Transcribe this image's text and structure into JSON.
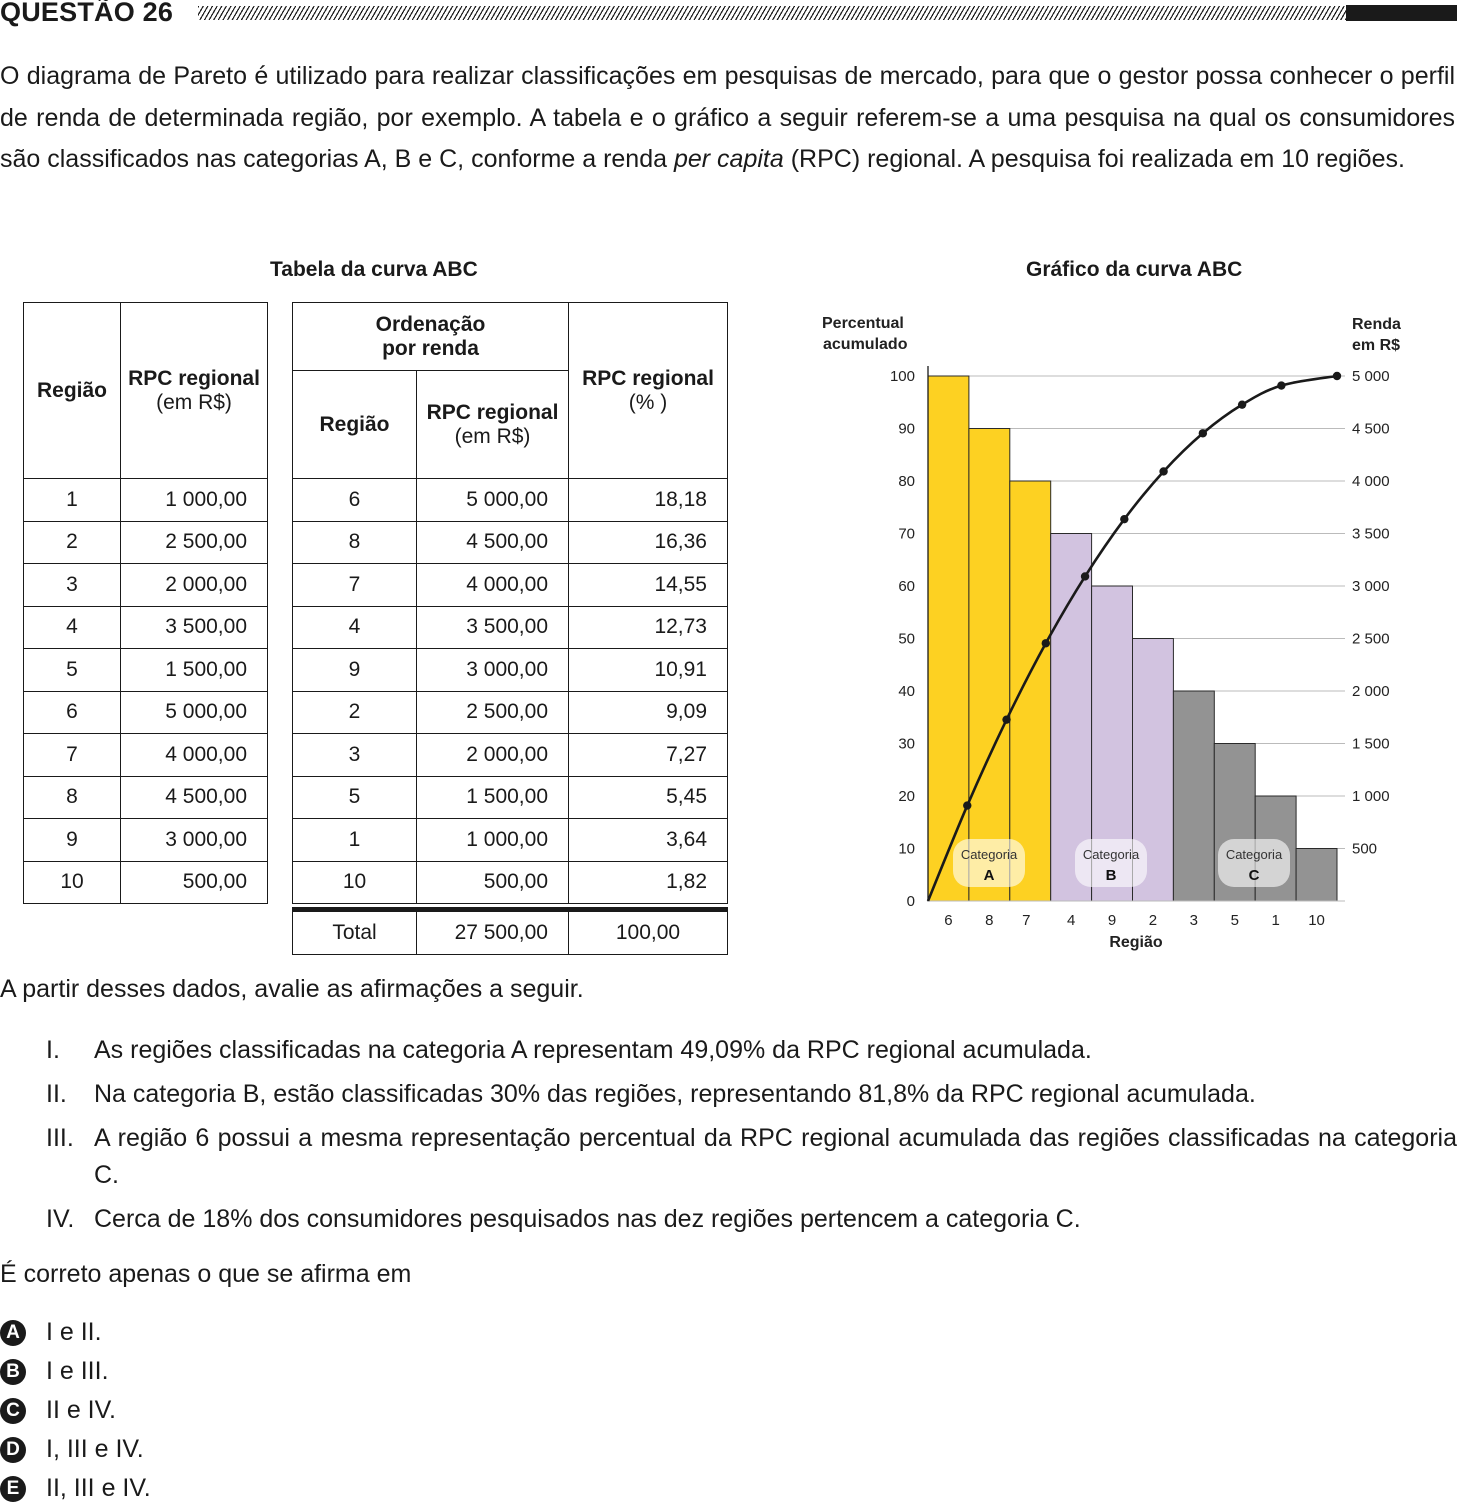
{
  "question": {
    "title": "QUESTÃO 26",
    "intro_pre": "O diagrama de Pareto é utilizado para realizar classificações em pesquisas de mercado, para que o gestor possa conhecer o perfil de renda de determinada região, por exemplo. A tabela e o gráfico a seguir referem-se a uma pesquisa na qual os consumidores são classificados nas categorias A, B e C, conforme a renda ",
    "intro_italic": "per capita",
    "intro_post": " (RPC) regional. A pesquisa foi realizada em 10 regiões."
  },
  "table": {
    "caption": "Tabela da curva ABC",
    "left_headers": {
      "region": "Região",
      "rpc": "RPC regional",
      "rpc_unit": "(em R$)"
    },
    "right_headers": {
      "group": "Ordenação",
      "group2": "por renda",
      "region": "Região",
      "rpc": "RPC regional",
      "rpc_unit": "(em R$)",
      "pct": "RPC regional",
      "pct_unit": "(% )"
    },
    "left_rows": [
      [
        "1",
        "1 000,00"
      ],
      [
        "2",
        "2 500,00"
      ],
      [
        "3",
        "2 000,00"
      ],
      [
        "4",
        "3 500,00"
      ],
      [
        "5",
        "1 500,00"
      ],
      [
        "6",
        "5 000,00"
      ],
      [
        "7",
        "4 000,00"
      ],
      [
        "8",
        "4 500,00"
      ],
      [
        "9",
        "3 000,00"
      ],
      [
        "10",
        "500,00"
      ]
    ],
    "right_rows": [
      [
        "6",
        "5 000,00",
        "18,18"
      ],
      [
        "8",
        "4 500,00",
        "16,36"
      ],
      [
        "7",
        "4 000,00",
        "14,55"
      ],
      [
        "4",
        "3 500,00",
        "12,73"
      ],
      [
        "9",
        "3 000,00",
        "10,91"
      ],
      [
        "2",
        "2 500,00",
        "9,09"
      ],
      [
        "3",
        "2 000,00",
        "7,27"
      ],
      [
        "5",
        "1 500,00",
        "5,45"
      ],
      [
        "1",
        "1 000,00",
        "3,64"
      ],
      [
        "10",
        "500,00",
        "1,82"
      ]
    ],
    "total": {
      "label": "Total",
      "rpc": "27 500,00",
      "pct": "100,00"
    }
  },
  "chart_data": {
    "type": "bar",
    "title": "Gráfico da curva ABC",
    "xlabel": "Região",
    "ylabel_left": [
      "Percentual",
      "acumulado"
    ],
    "ylabel_right": [
      "Renda",
      "em R$"
    ],
    "categories": [
      "6",
      "8",
      "7",
      "4",
      "9",
      "2",
      "3",
      "5",
      "1",
      "10"
    ],
    "values": [
      5000,
      4500,
      4000,
      3500,
      3000,
      2500,
      2000,
      1500,
      1000,
      500
    ],
    "bar_category": [
      "A",
      "A",
      "A",
      "B",
      "B",
      "B",
      "C",
      "C",
      "C",
      "C"
    ],
    "cumulative_percent": [
      0,
      18.18,
      34.54,
      49.09,
      61.82,
      72.73,
      81.82,
      89.09,
      94.54,
      98.18,
      100
    ],
    "left_ylim": [
      0,
      100
    ],
    "left_ticks": [
      "0",
      "10",
      "20",
      "30",
      "40",
      "50",
      "60",
      "70",
      "80",
      "90",
      "100"
    ],
    "right_ylim": [
      0,
      5000
    ],
    "right_ticks": [
      "500",
      "1 000",
      "1 500",
      "2 000",
      "2 500",
      "3 000",
      "3 500",
      "4 000",
      "4 500",
      "5 000"
    ],
    "grid": true,
    "category_labels": [
      {
        "word": "Categoria",
        "letter": "A"
      },
      {
        "word": "Categoria",
        "letter": "B"
      },
      {
        "word": "Categoria",
        "letter": "C"
      }
    ],
    "colors": {
      "A": "#fdd122",
      "B": "#d2c3e0",
      "C": "#939393",
      "curve": "#1a1a1a",
      "grid": "#bbbbbb"
    }
  },
  "after_text": "A partir desses dados, avalie as afirmações a seguir.",
  "statements": [
    {
      "num": "I.",
      "text": "As regiões classificadas na categoria A representam 49,09% da RPC regional acumulada."
    },
    {
      "num": "II.",
      "text": "Na categoria B, estão classificadas 30% das regiões, representando 81,8% da RPC regional acumulada."
    },
    {
      "num": "III.",
      "text": "A região 6 possui a mesma representação percentual da RPC regional acumulada das regiões classificadas na categoria C."
    },
    {
      "num": "IV.",
      "text": "Cerca de 18% dos consumidores pesquisados nas dez regiões pertencem a categoria C."
    }
  ],
  "ask": "É correto apenas o que se afirma em",
  "options": [
    {
      "letter": "A",
      "text": "I e II."
    },
    {
      "letter": "B",
      "text": "I e III."
    },
    {
      "letter": "C",
      "text": "II e IV."
    },
    {
      "letter": "D",
      "text": "I, III e IV."
    },
    {
      "letter": "E",
      "text": "II, III e IV."
    }
  ]
}
